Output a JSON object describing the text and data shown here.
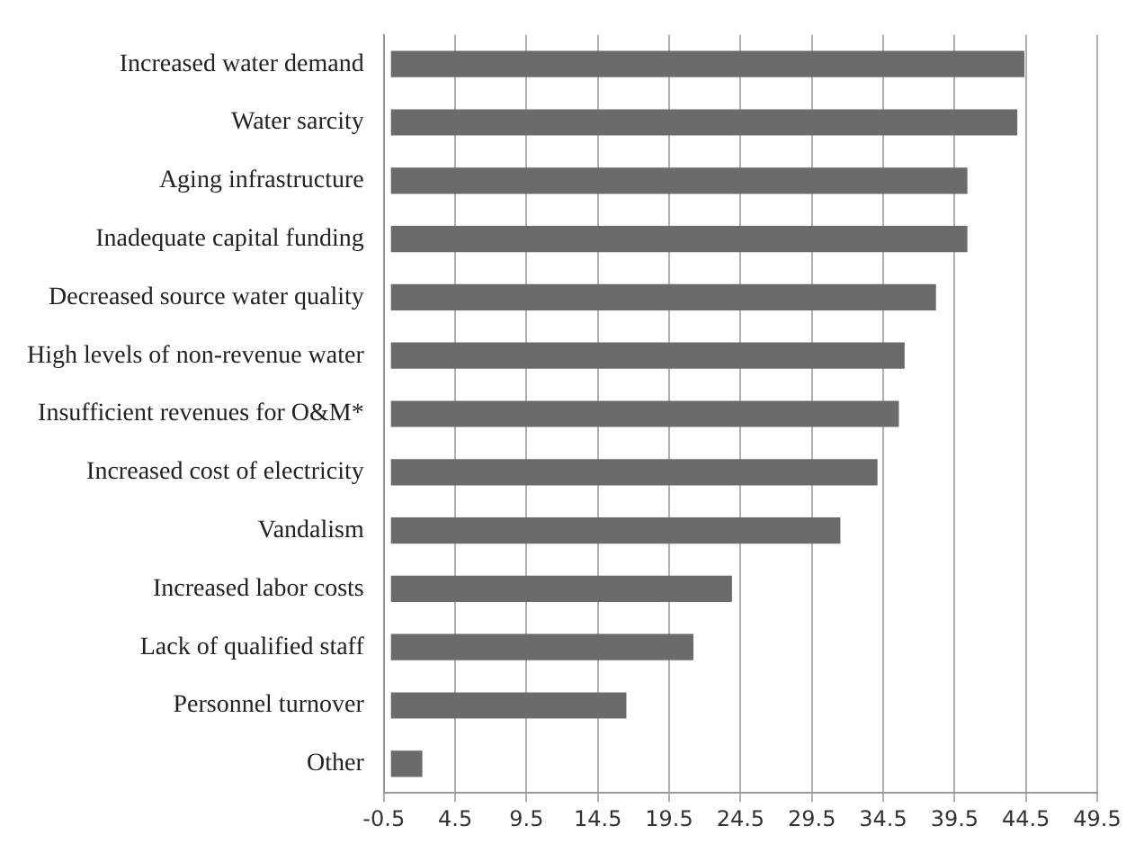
{
  "chart_data": {
    "type": "bar",
    "orientation": "horizontal",
    "categories": [
      "Increased water demand",
      "Water sarcity",
      "Aging infrastructure",
      "Inadequate capital funding",
      "Decreased source water quality",
      "High levels of non-revenue water",
      "Insufficient revenues for O&M*",
      "Increased cost of electricity",
      "Vandalism",
      "Increased labor costs",
      "Lack of qualified staff",
      "Personnel turnover",
      "Other"
    ],
    "series": [
      {
        "color": "#6b6b6b",
        "values": [
          44.4,
          43.9,
          40.4,
          40.4,
          38.2,
          36.0,
          35.6,
          34.1,
          31.5,
          23.9,
          21.2,
          16.5,
          2.2
        ]
      }
    ],
    "xlim": [
      -0.5,
      49.5
    ],
    "xticks": [
      -0.5,
      4.5,
      9.5,
      14.5,
      19.5,
      24.5,
      29.5,
      34.5,
      39.5,
      44.5,
      49.5
    ],
    "grid": "x",
    "legend": false
  }
}
